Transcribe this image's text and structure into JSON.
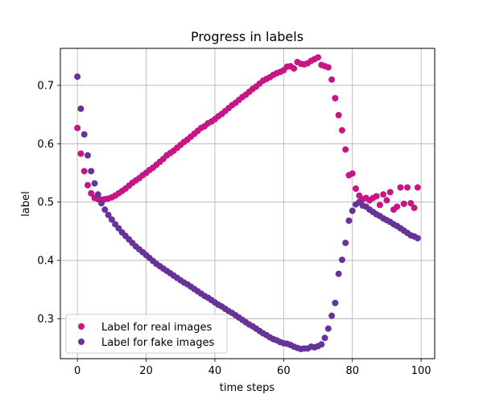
{
  "chart_data": {
    "type": "scatter",
    "title": "Progress in labels",
    "xlabel": "time steps",
    "ylabel": "label",
    "xlim": [
      -4.95,
      103.95
    ],
    "ylim": [
      0.2315,
      0.7635
    ],
    "xticks": [
      0,
      20,
      40,
      60,
      80,
      100
    ],
    "yticks": [
      0.3,
      0.4,
      0.5,
      0.6,
      0.7
    ],
    "grid": true,
    "legend_position": "lower-left",
    "x": [
      0,
      1,
      2,
      3,
      4,
      5,
      6,
      7,
      8,
      9,
      10,
      11,
      12,
      13,
      14,
      15,
      16,
      17,
      18,
      19,
      20,
      21,
      22,
      23,
      24,
      25,
      26,
      27,
      28,
      29,
      30,
      31,
      32,
      33,
      34,
      35,
      36,
      37,
      38,
      39,
      40,
      41,
      42,
      43,
      44,
      45,
      46,
      47,
      48,
      49,
      50,
      51,
      52,
      53,
      54,
      55,
      56,
      57,
      58,
      59,
      60,
      61,
      62,
      63,
      64,
      65,
      66,
      67,
      68,
      69,
      70,
      71,
      72,
      73,
      74,
      75,
      76,
      77,
      78,
      79,
      80,
      81,
      82,
      83,
      84,
      85,
      86,
      87,
      88,
      89,
      90,
      91,
      92,
      93,
      94,
      95,
      96,
      97,
      98,
      99
    ],
    "series": [
      {
        "name": "Label for real images",
        "color": "#c71585",
        "values": [
          0.627,
          0.583,
          0.553,
          0.529,
          0.515,
          0.507,
          0.505,
          0.504,
          0.505,
          0.506,
          0.508,
          0.511,
          0.515,
          0.519,
          0.523,
          0.528,
          0.533,
          0.537,
          0.541,
          0.546,
          0.55,
          0.555,
          0.559,
          0.564,
          0.569,
          0.574,
          0.58,
          0.584,
          0.588,
          0.593,
          0.598,
          0.603,
          0.607,
          0.612,
          0.617,
          0.622,
          0.627,
          0.63,
          0.635,
          0.638,
          0.642,
          0.647,
          0.651,
          0.656,
          0.661,
          0.666,
          0.67,
          0.675,
          0.68,
          0.684,
          0.689,
          0.694,
          0.698,
          0.703,
          0.708,
          0.711,
          0.714,
          0.718,
          0.721,
          0.723,
          0.726,
          0.732,
          0.733,
          0.729,
          0.74,
          0.737,
          0.736,
          0.738,
          0.742,
          0.745,
          0.748,
          0.735,
          0.733,
          0.731,
          0.71,
          0.678,
          0.649,
          0.623,
          0.59,
          0.546,
          0.549,
          0.523,
          0.511,
          0.505,
          0.507,
          0.503,
          0.507,
          0.51,
          0.495,
          0.513,
          0.503,
          0.517,
          0.487,
          0.492,
          0.525,
          0.497,
          0.525,
          0.498,
          0.49,
          0.525
        ],
        "order": [
          0,
          1,
          2,
          3,
          4,
          5,
          6,
          7,
          8,
          9,
          10,
          11,
          12,
          13,
          14,
          15,
          16,
          17,
          18,
          19,
          20,
          21,
          22,
          23,
          24,
          25,
          26,
          27,
          28,
          29,
          30,
          31,
          32,
          33,
          34,
          35,
          36,
          37,
          38,
          39,
          40,
          41,
          42,
          43,
          44,
          45,
          46,
          47,
          48,
          49,
          50,
          51,
          52,
          53,
          54,
          55,
          56,
          57,
          58,
          59,
          60,
          61,
          62,
          63,
          64,
          65,
          66,
          67,
          68,
          69,
          70,
          71,
          72,
          73,
          74,
          75,
          76,
          77,
          78,
          79,
          80,
          81,
          82,
          83,
          84,
          85,
          86,
          87,
          88,
          89,
          90,
          91,
          92,
          93,
          94,
          95,
          96,
          97,
          98,
          99
        ]
      },
      {
        "name": "Label for fake images",
        "color": "#663399",
        "values": [
          0.715,
          0.66,
          0.616,
          0.58,
          0.553,
          0.532,
          0.513,
          0.498,
          0.487,
          0.478,
          0.47,
          0.462,
          0.455,
          0.448,
          0.442,
          0.436,
          0.43,
          0.424,
          0.419,
          0.414,
          0.409,
          0.404,
          0.399,
          0.394,
          0.39,
          0.386,
          0.382,
          0.378,
          0.374,
          0.37,
          0.366,
          0.362,
          0.359,
          0.355,
          0.351,
          0.347,
          0.343,
          0.339,
          0.336,
          0.332,
          0.328,
          0.324,
          0.321,
          0.317,
          0.313,
          0.31,
          0.306,
          0.302,
          0.298,
          0.294,
          0.29,
          0.287,
          0.283,
          0.279,
          0.275,
          0.272,
          0.268,
          0.265,
          0.263,
          0.26,
          0.258,
          0.257,
          0.255,
          0.252,
          0.25,
          0.248,
          0.249,
          0.249,
          0.252,
          0.251,
          0.253,
          0.256,
          0.267,
          0.283,
          0.305,
          0.327,
          0.377,
          0.401,
          0.43,
          0.468,
          0.485,
          0.496,
          0.5,
          0.494,
          0.492,
          0.487,
          0.483,
          0.479,
          0.476,
          0.472,
          0.469,
          0.466,
          0.462,
          0.459,
          0.455,
          0.451,
          0.447,
          0.443,
          0.441,
          0.438
        ]
      }
    ]
  }
}
